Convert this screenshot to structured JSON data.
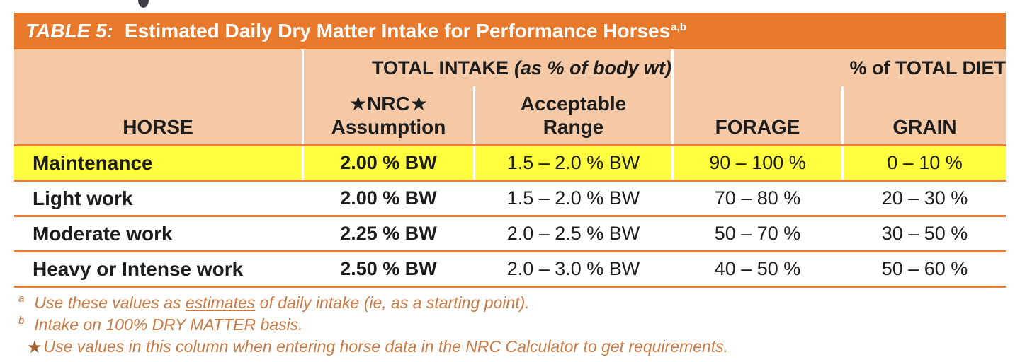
{
  "colors": {
    "title_bar": "#E8792B",
    "header_bg": "#F6C9A6",
    "highlight_row": "#FFFF3F",
    "rule_orange": "#ED7D31",
    "footnote_text": "#C87A44",
    "body_text": "#1D1D1D"
  },
  "table": {
    "title": {
      "prefix": "TABLE 5:",
      "main": "Estimated Daily Dry Matter Intake for Performance Horses",
      "superscript": "a,b"
    },
    "groups": {
      "total_intake_bold": "TOTAL INTAKE",
      "total_intake_italic": "(as % of body wt)",
      "total_diet": "% of TOTAL DIET"
    },
    "columns": {
      "horse": "HORSE",
      "nrc_line1": "★NRC★",
      "nrc_line2": "Assumption",
      "range_line1": "Acceptable",
      "range_line2": "Range",
      "forage": "FORAGE",
      "grain": "GRAIN"
    },
    "rows": [
      {
        "horse": "Maintenance",
        "nrc": "2.00 % BW",
        "range": "1.5 – 2.0 % BW",
        "forage": "90 – 100 %",
        "grain": "0 – 10 %"
      },
      {
        "horse": "Light work",
        "nrc": "2.00 % BW",
        "range": "1.5 – 2.0 % BW",
        "forage": "70 – 80 %",
        "grain": "20 – 30 %"
      },
      {
        "horse": "Moderate work",
        "nrc": "2.25 % BW",
        "range": "2.0 – 2.5 % BW",
        "forage": "50 – 70 %",
        "grain": "30 – 50 %"
      },
      {
        "horse": "Heavy or Intense work",
        "nrc": "2.50 % BW",
        "range": "2.0 – 3.0 % BW",
        "forage": "40 – 50 %",
        "grain": "50 – 60 %"
      }
    ]
  },
  "footnotes": {
    "a": {
      "marker": "a",
      "pre": "Use these values as ",
      "underlined": "estimates",
      "post": " of daily intake (ie, as a starting point)."
    },
    "b": {
      "marker": "b",
      "text": "Intake on 100% DRY MATTER basis."
    },
    "star": {
      "marker": "★",
      "text": "Use values in this column when entering horse data in the NRC Calculator to get requirements."
    }
  }
}
